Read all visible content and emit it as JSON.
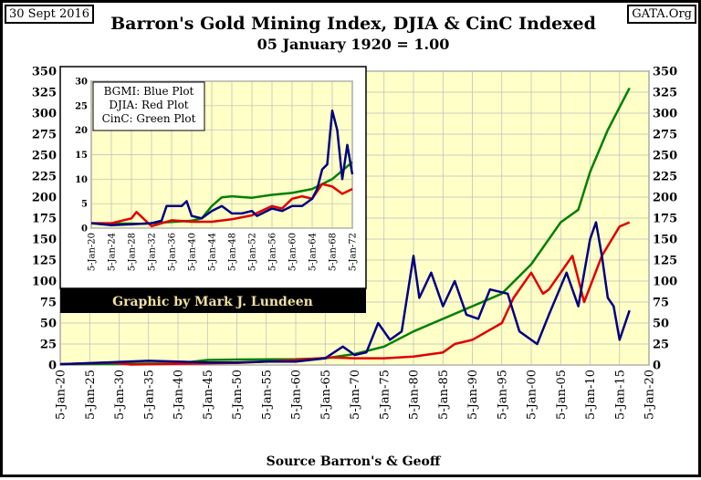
{
  "header": {
    "date": "30 Sept 2016",
    "source_site": "GATA.Org",
    "title": "Barron's Gold Mining Index, DJIA & CinC Indexed",
    "subtitle": "05 January 1920 = 1.00",
    "footer": "Source Barron's & Geoff",
    "credit": "Graphic by Mark J. Lundeen"
  },
  "colors": {
    "bgmi": "#000080",
    "djia": "#E00000",
    "cinc": "#008000",
    "plot_bg": "#FFFFC8"
  },
  "chart_data": [
    {
      "type": "line",
      "title": "Barron's Gold Mining Index, DJIA & CinC Indexed",
      "xlim": [
        1920,
        2020
      ],
      "ylim": [
        0,
        350
      ],
      "yticks": [
        "0",
        "25",
        "50",
        "75",
        "100",
        "125",
        "150",
        "175",
        "200",
        "225",
        "250",
        "275",
        "300",
        "325",
        "350"
      ],
      "xticks": [
        "5-Jan-20",
        "5-Jan-25",
        "5-Jan-30",
        "5-Jan-35",
        "5-Jan-40",
        "5-Jan-45",
        "5-Jan-50",
        "5-Jan-55",
        "5-Jan-60",
        "5-Jan-65",
        "5-Jan-70",
        "5-Jan-75",
        "5-Jan-80",
        "5-Jan-85",
        "5-Jan-90",
        "5-Jan-95",
        "5-Jan-00",
        "5-Jan-05",
        "5-Jan-10",
        "5-Jan-15",
        "5-Jan-20"
      ],
      "series": [
        {
          "name": "BGMI",
          "x": [
            1920,
            1935,
            1940,
            1945,
            1950,
            1955,
            1960,
            1965,
            1968,
            1970,
            1972,
            1974,
            1976,
            1978,
            1980,
            1981,
            1983,
            1985,
            1987,
            1989,
            1991,
            1993,
            1996,
            1998,
            2000,
            2001,
            2003,
            2006,
            2008,
            2010,
            2011,
            2012,
            2013,
            2014,
            2015,
            2016.7
          ],
          "y": [
            1,
            5,
            4,
            3,
            3,
            4,
            4,
            8,
            22,
            12,
            15,
            50,
            30,
            40,
            130,
            80,
            110,
            70,
            100,
            60,
            55,
            90,
            85,
            40,
            30,
            25,
            60,
            110,
            70,
            150,
            170,
            130,
            80,
            70,
            30,
            65
          ]
        },
        {
          "name": "DJIA",
          "x": [
            1920,
            1929,
            1932,
            1940,
            1950,
            1955,
            1960,
            1966,
            1970,
            1975,
            1980,
            1985,
            1987,
            1990,
            1995,
            1997,
            2000,
            2002,
            2003,
            2007,
            2009,
            2012,
            2015,
            2016.7
          ],
          "y": [
            1,
            3,
            0.5,
            1.5,
            2.5,
            4,
            6,
            9,
            8,
            8,
            10,
            15,
            25,
            30,
            50,
            80,
            110,
            85,
            90,
            130,
            75,
            130,
            165,
            170
          ]
        },
        {
          "name": "CinC",
          "x": [
            1920,
            1940,
            1945,
            1950,
            1960,
            1965,
            1970,
            1975,
            1980,
            1985,
            1990,
            1995,
            2000,
            2005,
            2008,
            2010,
            2013,
            2016.7
          ],
          "y": [
            1,
            2,
            6,
            6.5,
            7,
            8,
            13,
            22,
            40,
            55,
            70,
            85,
            120,
            170,
            185,
            230,
            280,
            330
          ]
        }
      ]
    },
    {
      "type": "line",
      "title": "inset",
      "xlim": [
        1920,
        1972
      ],
      "ylim": [
        0,
        30
      ],
      "yticks": [
        "0",
        "5",
        "10",
        "15",
        "20",
        "25",
        "30"
      ],
      "xticks": [
        "5-Jan-20",
        "5-Jan-24",
        "5-Jan-28",
        "5-Jan-32",
        "5-Jan-36",
        "5-Jan-40",
        "5-Jan-44",
        "5-Jan-48",
        "5-Jan-52",
        "5-Jan-56",
        "5-Jan-60",
        "5-Jan-64",
        "5-Jan-68",
        "5-Jan-72"
      ],
      "legend": [
        "BGMI: Blue Plot",
        "DJIA: Red Plot",
        "CinC: Green Plot"
      ],
      "series": [
        {
          "name": "BGMI",
          "x": [
            1920,
            1924,
            1928,
            1932,
            1934,
            1935,
            1936,
            1938,
            1939,
            1940,
            1942,
            1944,
            1946,
            1948,
            1950,
            1952,
            1953,
            1956,
            1958,
            1960,
            1962,
            1964,
            1965,
            1966,
            1967,
            1968,
            1969,
            1970,
            1971,
            1972
          ],
          "y": [
            1,
            0.6,
            0.8,
            1,
            1.5,
            4.5,
            4.5,
            4.5,
            5.5,
            2.5,
            2,
            3.5,
            4.5,
            3,
            3,
            3.5,
            2.5,
            4,
            3.5,
            4.5,
            4.5,
            6,
            8,
            12,
            13,
            24,
            20,
            10,
            17,
            11
          ]
        },
        {
          "name": "DJIA",
          "x": [
            1920,
            1924,
            1928,
            1929,
            1932,
            1936,
            1940,
            1944,
            1948,
            1952,
            1956,
            1958,
            1960,
            1962,
            1964,
            1966,
            1968,
            1970,
            1972
          ],
          "y": [
            1,
            1,
            2,
            3.3,
            0.4,
            1.6,
            1.3,
            1.3,
            1.8,
            2.6,
            4.5,
            4,
            6,
            6.5,
            6,
            9,
            8.5,
            7,
            8
          ]
        },
        {
          "name": "CinC",
          "x": [
            1920,
            1930,
            1940,
            1942,
            1944,
            1946,
            1948,
            1952,
            1956,
            1960,
            1964,
            1968,
            1972
          ],
          "y": [
            1,
            0.9,
            1.5,
            2,
            4.5,
            6.3,
            6.5,
            6.2,
            6.8,
            7.2,
            8,
            10,
            13.5
          ]
        }
      ]
    }
  ]
}
